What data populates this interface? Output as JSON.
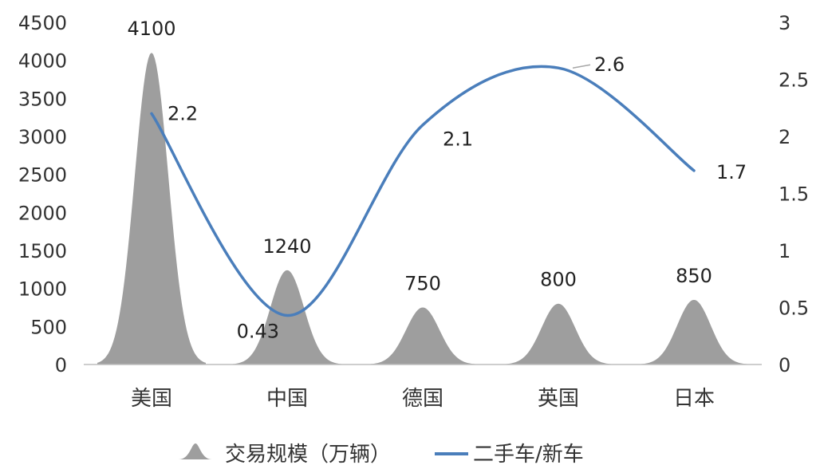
{
  "chart_data": {
    "type": "bar",
    "categories": [
      "美国",
      "中国",
      "德国",
      "英国",
      "日本"
    ],
    "series": [
      {
        "name": "交易规模（万辆）",
        "type": "peak",
        "axis": "left",
        "values": [
          4100,
          1240,
          750,
          800,
          850
        ],
        "labels": [
          "4100",
          "1240",
          "750",
          "800",
          "850"
        ],
        "color": "#9e9e9e"
      },
      {
        "name": "二手车/新车",
        "type": "line",
        "axis": "right",
        "values": [
          2.2,
          0.43,
          2.1,
          2.6,
          1.7
        ],
        "labels": [
          "2.2",
          "0.43",
          "2.1",
          "2.6",
          "1.7"
        ],
        "color": "#4a7ebb"
      }
    ],
    "y_left": {
      "min": 0,
      "max": 4500,
      "ticks": [
        "0",
        "500",
        "1000",
        "1500",
        "2000",
        "2500",
        "3000",
        "3500",
        "4000",
        "4500"
      ]
    },
    "y_right": {
      "min": 0,
      "max": 3,
      "ticks": [
        "0",
        "0.5",
        "1",
        "1.5",
        "2",
        "2.5",
        "3"
      ]
    },
    "grid": false,
    "legend_position": "bottom"
  }
}
